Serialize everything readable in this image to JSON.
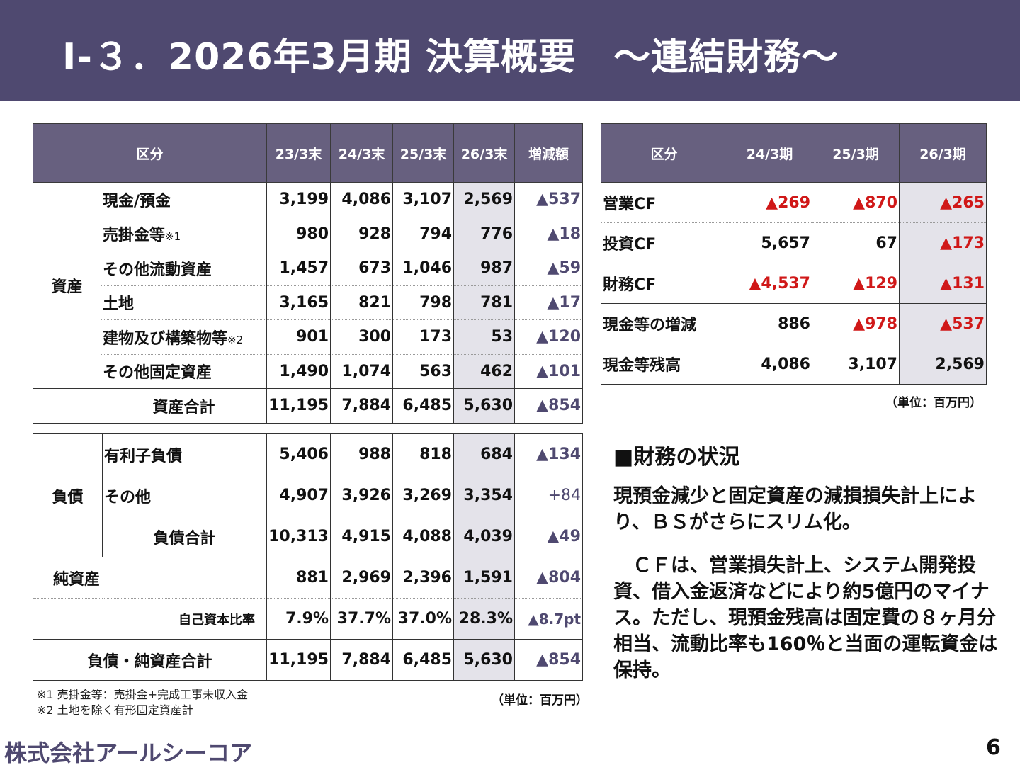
{
  "title": "Ⅰ-３．2026年3月期 決算概要　～連結財務～",
  "bs_header": [
    "区分",
    "23/3末",
    "24/3末",
    "25/3末",
    "26/3末",
    "増減額"
  ],
  "assets": {
    "group_label": "資産",
    "rows": [
      {
        "label": "現金/預金",
        "note": "",
        "values": [
          "3,199",
          "4,086",
          "3,107",
          "2,569"
        ],
        "change": "▲537"
      },
      {
        "label": "売掛金等",
        "note": "※1",
        "values": [
          "980",
          "928",
          "794",
          "776"
        ],
        "change": "▲18"
      },
      {
        "label": "その他流動資産",
        "note": "",
        "values": [
          "1,457",
          "673",
          "1,046",
          "987"
        ],
        "change": "▲59"
      },
      {
        "label": "土地",
        "note": "",
        "values": [
          "3,165",
          "821",
          "798",
          "781"
        ],
        "change": "▲17"
      },
      {
        "label": "建物及び構築物等",
        "note": "※2",
        "values": [
          "901",
          "300",
          "173",
          "53"
        ],
        "change": "▲120"
      },
      {
        "label": "その他固定資産",
        "note": "",
        "values": [
          "1,490",
          "1,074",
          "563",
          "462"
        ],
        "change": "▲101"
      }
    ],
    "total": {
      "label": "資産合計",
      "values": [
        "11,195",
        "7,884",
        "6,485",
        "5,630"
      ],
      "change": "▲854"
    }
  },
  "liabilities": {
    "group_label": "負債",
    "rows": [
      {
        "label": "有利子負債",
        "values": [
          "5,406",
          "988",
          "818",
          "684"
        ],
        "change": "▲134"
      },
      {
        "label": "その他",
        "values": [
          "4,907",
          "3,926",
          "3,269",
          "3,354"
        ],
        "change": "+84"
      }
    ],
    "total": {
      "label": "負債合計",
      "values": [
        "10,313",
        "4,915",
        "4,088",
        "4,039"
      ],
      "change": "▲49"
    }
  },
  "net_assets": {
    "label": "純資産",
    "values": [
      "881",
      "2,969",
      "2,396",
      "1,591"
    ],
    "change": "▲804"
  },
  "equity_ratio": {
    "label": "自己資本比率",
    "values": [
      "7.9%",
      "37.7%",
      "37.0%",
      "28.3%"
    ],
    "change": "▲8.7pt"
  },
  "grand_total": {
    "label": "負債・純資産合計",
    "values": [
      "11,195",
      "7,884",
      "6,485",
      "5,630"
    ],
    "change": "▲854"
  },
  "bs_unit": "（単位：百万円）",
  "notes": [
    "※1 売掛金等：売掛金+完成工事未収入金",
    "※2 土地を除く有形固定資産計"
  ],
  "cf_header": [
    "区分",
    "24/3期",
    "25/3期",
    "26/3期"
  ],
  "cf_rows": [
    {
      "label": "営業CF",
      "values": [
        "▲269",
        "▲870",
        "▲265"
      ]
    },
    {
      "label": "投資CF",
      "values": [
        "5,657",
        "67",
        "▲173"
      ]
    },
    {
      "label": "財務CF",
      "values": [
        "▲4,537",
        "▲129",
        "▲131"
      ]
    },
    {
      "label": "現金等の増減",
      "values": [
        "886",
        "▲978",
        "▲537"
      ]
    },
    {
      "label": "現金等残高",
      "values": [
        "4,086",
        "3,107",
        "2,569"
      ]
    }
  ],
  "cf_unit": "（単位：百万円）",
  "section_title": "■財務の状況",
  "paragraphs": [
    "現預金減少と固定資産の減損損失計上により、ＢＳがさらにスリム化。",
    "ＣＦは、営業損失計上、システム開発投資、借入金返済などにより約5億円のマイナス。ただし、現預金残高は固定費の８ヶ月分相当、流動比率も160％と当面の運転資金は保持。"
  ],
  "company": "株式会社アールシーコア",
  "page_number": "6",
  "colors": {
    "header_bg": "#4f4970",
    "table_header_bg": "#67607f",
    "highlight_col": "#e4e3ea",
    "negative_red": "#d01818",
    "negative_dark": "#4f4970"
  }
}
